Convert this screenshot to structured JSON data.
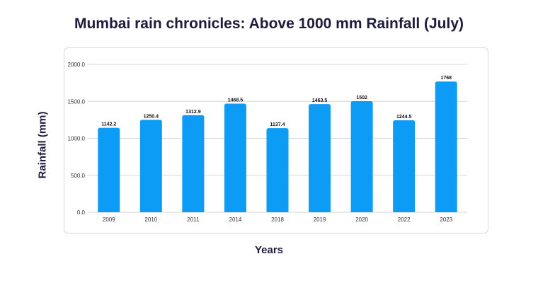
{
  "chart_data": {
    "type": "bar",
    "title": "Mumbai rain chronicles: Above 1000 mm Rainfall (July)",
    "xlabel": "Years",
    "ylabel": "Rainfall (mm)",
    "categories": [
      "2009",
      "2010",
      "2011",
      "2014",
      "2018",
      "2019",
      "2020",
      "2022",
      "2023"
    ],
    "values": [
      1142.2,
      1250.4,
      1312.9,
      1468.5,
      1137.4,
      1463.5,
      1502,
      1244.5,
      1768
    ],
    "value_labels": [
      "1142.2",
      "1250.4",
      "1312.9",
      "1468.5",
      "1137.4",
      "1463.5",
      "1502",
      "1244.5",
      "1768"
    ],
    "ylim": [
      0,
      2000
    ],
    "yticks": [
      "0.0",
      "500.0",
      "1000.0",
      "1500.0",
      "2000.0"
    ],
    "ytick_values": [
      0,
      500,
      1000,
      1500,
      2000
    ],
    "grid": true,
    "bar_color": "#0d9cf5",
    "grid_color": "#d6d6d6"
  }
}
